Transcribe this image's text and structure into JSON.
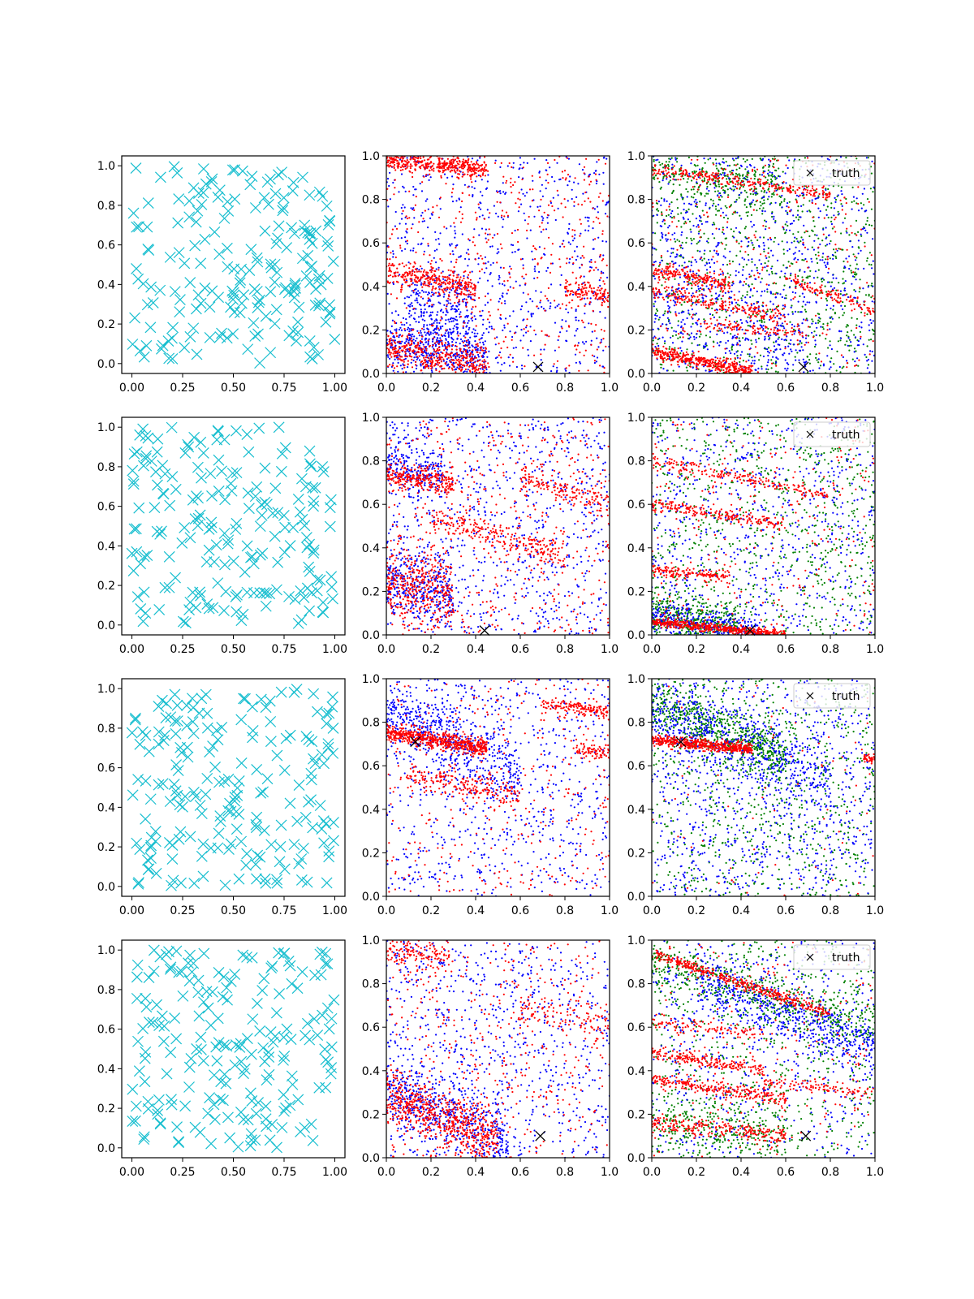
{
  "figure": {
    "rows": 4,
    "cols": 3
  },
  "colors": {
    "cyan": "#17becf",
    "blue": "#0000ff",
    "red": "#ff0000",
    "green": "#008000",
    "black": "#000000"
  },
  "legend_label": "truth",
  "chart_data": [
    {
      "type": "scatter",
      "row": 0,
      "col": 0,
      "marker": "x-large",
      "color": "#17becf",
      "xlim": [
        -0.05,
        1.05
      ],
      "ylim": [
        -0.05,
        1.05
      ],
      "xticks": [
        "0.00",
        "0.25",
        "0.50",
        "0.75",
        "1.00"
      ],
      "yticks": [
        "0.0",
        "0.2",
        "0.4",
        "0.6",
        "0.8",
        "1.0"
      ],
      "sample": "uniform",
      "n_points": 200,
      "seed": 11
    },
    {
      "type": "scatter",
      "row": 0,
      "col": 1,
      "xlim": [
        0,
        1
      ],
      "ylim": [
        0,
        1
      ],
      "xticks": [
        "0.0",
        "0.2",
        "0.4",
        "0.6",
        "0.8",
        "1.0"
      ],
      "yticks": [
        "0.0",
        "0.2",
        "0.4",
        "0.6",
        "0.8",
        "1.0"
      ],
      "truth": [
        0.68,
        0.03
      ],
      "legend": false,
      "series": [
        {
          "name": "",
          "color": "#0000ff",
          "uniform": 700,
          "bands": [
            {
              "x": [
                0.0,
                0.45
              ],
              "y0": 0.15,
              "slope": -0.2,
              "width": 0.06,
              "n": 400
            },
            {
              "x": [
                0.1,
                0.4
              ],
              "y0": 0.35,
              "slope": -0.2,
              "width": 0.1,
              "n": 300
            }
          ]
        },
        {
          "name": "",
          "color": "#ff0000",
          "uniform": 500,
          "bands": [
            {
              "x": [
                0.0,
                0.45
              ],
              "y0": 0.98,
              "slope": -0.1,
              "width": 0.02,
              "n": 400
            },
            {
              "x": [
                0.0,
                0.4
              ],
              "y0": 0.47,
              "slope": -0.2,
              "width": 0.03,
              "n": 300
            },
            {
              "x": [
                0.0,
                0.45
              ],
              "y0": 0.12,
              "slope": -0.2,
              "width": 0.04,
              "n": 400
            },
            {
              "x": [
                0.8,
                1.0
              ],
              "y0": 0.55,
              "slope": -0.2,
              "width": 0.02,
              "n": 120
            }
          ]
        }
      ]
    },
    {
      "type": "scatter",
      "row": 0,
      "col": 2,
      "xlim": [
        0,
        1
      ],
      "ylim": [
        0,
        1
      ],
      "xticks": [
        "0.0",
        "0.2",
        "0.4",
        "0.6",
        "0.8",
        "1.0"
      ],
      "yticks": [
        "0.0",
        "0.2",
        "0.4",
        "0.6",
        "0.8",
        "1.0"
      ],
      "truth": [
        0.68,
        0.03
      ],
      "legend": true,
      "series": [
        {
          "name": "",
          "color": "#008000",
          "uniform": 900,
          "bands": [
            {
              "x": [
                0.0,
                0.6
              ],
              "y0": 0.95,
              "slope": -0.2,
              "width": 0.05,
              "n": 250
            }
          ]
        },
        {
          "name": "",
          "color": "#0000ff",
          "uniform": 800,
          "bands": [
            {
              "x": [
                0.0,
                0.7
              ],
              "y0": 0.3,
              "slope": -0.2,
              "width": 0.15,
              "n": 300
            }
          ]
        },
        {
          "name": "",
          "color": "#ff0000",
          "uniform": 300,
          "bands": [
            {
              "x": [
                0.0,
                0.45
              ],
              "y0": 0.1,
              "slope": -0.2,
              "width": 0.015,
              "n": 400
            },
            {
              "x": [
                0.0,
                0.35
              ],
              "y0": 0.48,
              "slope": -0.2,
              "width": 0.02,
              "n": 200
            },
            {
              "x": [
                0.0,
                0.6
              ],
              "y0": 0.38,
              "slope": -0.2,
              "width": 0.02,
              "n": 200
            },
            {
              "x": [
                0.0,
                0.8
              ],
              "y0": 0.94,
              "slope": -0.15,
              "width": 0.015,
              "n": 250
            },
            {
              "x": [
                0.6,
                1.0
              ],
              "y0": 0.68,
              "slope": -0.4,
              "width": 0.015,
              "n": 120
            },
            {
              "x": [
                0.2,
                0.7
              ],
              "y0": 0.25,
              "slope": -0.1,
              "width": 0.015,
              "n": 100
            }
          ]
        }
      ]
    },
    {
      "type": "scatter",
      "row": 1,
      "col": 0,
      "marker": "x-large",
      "color": "#17becf",
      "xlim": [
        -0.05,
        1.05
      ],
      "ylim": [
        -0.05,
        1.05
      ],
      "xticks": [
        "0.00",
        "0.25",
        "0.50",
        "0.75",
        "1.00"
      ],
      "yticks": [
        "0.0",
        "0.2",
        "0.4",
        "0.6",
        "0.8",
        "1.0"
      ],
      "sample": "uniform",
      "n_points": 200,
      "seed": 22
    },
    {
      "type": "scatter",
      "row": 1,
      "col": 1,
      "xlim": [
        0,
        1
      ],
      "ylim": [
        0,
        1
      ],
      "xticks": [
        "0.0",
        "0.2",
        "0.4",
        "0.6",
        "0.8",
        "1.0"
      ],
      "yticks": [
        "0.0",
        "0.2",
        "0.4",
        "0.6",
        "0.8",
        "1.0"
      ],
      "truth": [
        0.44,
        0.02
      ],
      "legend": false,
      "series": [
        {
          "name": "",
          "color": "#0000ff",
          "uniform": 800,
          "bands": [
            {
              "x": [
                0.0,
                0.3
              ],
              "y0": 0.25,
              "slope": -0.2,
              "width": 0.08,
              "n": 350
            },
            {
              "x": [
                0.0,
                0.25
              ],
              "y0": 0.8,
              "slope": -0.2,
              "width": 0.06,
              "n": 200
            }
          ]
        },
        {
          "name": "",
          "color": "#ff0000",
          "uniform": 500,
          "bands": [
            {
              "x": [
                0.0,
                0.3
              ],
              "y0": 0.25,
              "slope": -0.2,
              "width": 0.08,
              "n": 350
            },
            {
              "x": [
                0.0,
                0.3
              ],
              "y0": 0.74,
              "slope": -0.15,
              "width": 0.03,
              "n": 250
            },
            {
              "x": [
                0.2,
                0.8
              ],
              "y0": 0.6,
              "slope": -0.3,
              "width": 0.03,
              "n": 250
            },
            {
              "x": [
                0.6,
                1.0
              ],
              "y0": 0.9,
              "slope": -0.3,
              "width": 0.03,
              "n": 150
            }
          ]
        }
      ]
    },
    {
      "type": "scatter",
      "row": 1,
      "col": 2,
      "xlim": [
        0,
        1
      ],
      "ylim": [
        0,
        1
      ],
      "xticks": [
        "0.0",
        "0.2",
        "0.4",
        "0.6",
        "0.8",
        "1.0"
      ],
      "yticks": [
        "0.0",
        "0.2",
        "0.4",
        "0.6",
        "0.8",
        "1.0"
      ],
      "truth": [
        0.44,
        0.02
      ],
      "legend": true,
      "series": [
        {
          "name": "",
          "color": "#008000",
          "uniform": 800,
          "bands": [
            {
              "x": [
                0.0,
                0.4
              ],
              "y0": 0.1,
              "slope": -0.2,
              "width": 0.05,
              "n": 400
            }
          ]
        },
        {
          "name": "",
          "color": "#0000ff",
          "uniform": 700,
          "bands": [
            {
              "x": [
                0.0,
                0.5
              ],
              "y0": 0.08,
              "slope": -0.15,
              "width": 0.04,
              "n": 300
            }
          ]
        },
        {
          "name": "",
          "color": "#ff0000",
          "uniform": 250,
          "bands": [
            {
              "x": [
                0.0,
                0.6
              ],
              "y0": 0.06,
              "slope": -0.1,
              "width": 0.01,
              "n": 500
            },
            {
              "x": [
                0.0,
                0.35
              ],
              "y0": 0.3,
              "slope": -0.1,
              "width": 0.015,
              "n": 150
            },
            {
              "x": [
                0.0,
                0.6
              ],
              "y0": 0.6,
              "slope": -0.15,
              "width": 0.015,
              "n": 200
            },
            {
              "x": [
                0.0,
                0.8
              ],
              "y0": 0.8,
              "slope": -0.2,
              "width": 0.015,
              "n": 200
            }
          ]
        }
      ]
    },
    {
      "type": "scatter",
      "row": 2,
      "col": 0,
      "marker": "x-large",
      "color": "#17becf",
      "xlim": [
        -0.05,
        1.05
      ],
      "ylim": [
        -0.05,
        1.05
      ],
      "xticks": [
        "0.00",
        "0.25",
        "0.50",
        "0.75",
        "1.00"
      ],
      "yticks": [
        "0.0",
        "0.2",
        "0.4",
        "0.6",
        "0.8",
        "1.0"
      ],
      "sample": "uniform",
      "n_points": 200,
      "seed": 33
    },
    {
      "type": "scatter",
      "row": 2,
      "col": 1,
      "xlim": [
        0,
        1
      ],
      "ylim": [
        0,
        1
      ],
      "xticks": [
        "0.0",
        "0.2",
        "0.4",
        "0.6",
        "0.8",
        "1.0"
      ],
      "yticks": [
        "0.0",
        "0.2",
        "0.4",
        "0.6",
        "0.8",
        "1.0"
      ],
      "truth": [
        0.13,
        0.71
      ],
      "legend": false,
      "series": [
        {
          "name": "",
          "color": "#0000ff",
          "uniform": 700,
          "bands": [
            {
              "x": [
                0.0,
                0.6
              ],
              "y0": 0.85,
              "slope": -0.5,
              "width": 0.08,
              "n": 500
            }
          ]
        },
        {
          "name": "",
          "color": "#ff0000",
          "uniform": 350,
          "bands": [
            {
              "x": [
                0.0,
                0.45
              ],
              "y0": 0.75,
              "slope": -0.15,
              "width": 0.02,
              "n": 600
            },
            {
              "x": [
                0.1,
                0.6
              ],
              "y0": 0.58,
              "slope": -0.2,
              "width": 0.03,
              "n": 200
            },
            {
              "x": [
                0.7,
                1.0
              ],
              "y0": 0.95,
              "slope": -0.1,
              "width": 0.015,
              "n": 150
            },
            {
              "x": [
                0.85,
                1.0
              ],
              "y0": 0.76,
              "slope": -0.1,
              "width": 0.02,
              "n": 80
            }
          ]
        }
      ]
    },
    {
      "type": "scatter",
      "row": 2,
      "col": 2,
      "xlim": [
        0,
        1
      ],
      "ylim": [
        0,
        1
      ],
      "xticks": [
        "0.0",
        "0.2",
        "0.4",
        "0.6",
        "0.8",
        "1.0"
      ],
      "yticks": [
        "0.0",
        "0.2",
        "0.4",
        "0.6",
        "0.8",
        "1.0"
      ],
      "truth": [
        0.13,
        0.71
      ],
      "legend": true,
      "series": [
        {
          "name": "",
          "color": "#008000",
          "uniform": 800,
          "bands": [
            {
              "x": [
                0.0,
                0.6
              ],
              "y0": 0.88,
              "slope": -0.4,
              "width": 0.06,
              "n": 600
            }
          ]
        },
        {
          "name": "",
          "color": "#0000ff",
          "uniform": 900,
          "bands": [
            {
              "x": [
                0.0,
                0.8
              ],
              "y0": 0.85,
              "slope": -0.4,
              "width": 0.08,
              "n": 500
            }
          ]
        },
        {
          "name": "",
          "color": "#ff0000",
          "uniform": 80,
          "bands": [
            {
              "x": [
                0.0,
                0.45
              ],
              "y0": 0.72,
              "slope": -0.1,
              "width": 0.012,
              "n": 500
            },
            {
              "x": [
                0.95,
                1.0
              ],
              "y0": 0.73,
              "slope": -0.1,
              "width": 0.01,
              "n": 40
            }
          ]
        }
      ]
    },
    {
      "type": "scatter",
      "row": 3,
      "col": 0,
      "marker": "x-large",
      "color": "#17becf",
      "xlim": [
        -0.05,
        1.05
      ],
      "ylim": [
        -0.05,
        1.05
      ],
      "xticks": [
        "0.00",
        "0.25",
        "0.50",
        "0.75",
        "1.00"
      ],
      "yticks": [
        "0.0",
        "0.2",
        "0.4",
        "0.6",
        "0.8",
        "1.0"
      ],
      "sample": "uniform",
      "n_points": 200,
      "seed": 44
    },
    {
      "type": "scatter",
      "row": 3,
      "col": 1,
      "xlim": [
        0,
        1
      ],
      "ylim": [
        0,
        1
      ],
      "xticks": [
        "0.0",
        "0.2",
        "0.4",
        "0.6",
        "0.8",
        "1.0"
      ],
      "yticks": [
        "0.0",
        "0.2",
        "0.4",
        "0.6",
        "0.8",
        "1.0"
      ],
      "truth": [
        0.69,
        0.1
      ],
      "legend": false,
      "series": [
        {
          "name": "",
          "color": "#0000ff",
          "uniform": 800,
          "bands": [
            {
              "x": [
                0.0,
                0.55
              ],
              "y0": 0.3,
              "slope": -0.4,
              "width": 0.08,
              "n": 500
            }
          ]
        },
        {
          "name": "",
          "color": "#ff0000",
          "uniform": 450,
          "bands": [
            {
              "x": [
                0.0,
                0.5
              ],
              "y0": 0.28,
              "slope": -0.4,
              "width": 0.06,
              "n": 600
            },
            {
              "x": [
                0.0,
                0.3
              ],
              "y0": 0.95,
              "slope": -0.1,
              "width": 0.03,
              "n": 120
            },
            {
              "x": [
                0.6,
                1.0
              ],
              "y0": 0.8,
              "slope": -0.2,
              "width": 0.04,
              "n": 100
            }
          ]
        }
      ]
    },
    {
      "type": "scatter",
      "row": 3,
      "col": 2,
      "xlim": [
        0,
        1
      ],
      "ylim": [
        0,
        1
      ],
      "xticks": [
        "0.0",
        "0.2",
        "0.4",
        "0.6",
        "0.8",
        "1.0"
      ],
      "yticks": [
        "0.0",
        "0.2",
        "0.4",
        "0.6",
        "0.8",
        "1.0"
      ],
      "truth": [
        0.69,
        0.1
      ],
      "legend": true,
      "series": [
        {
          "name": "",
          "color": "#008000",
          "uniform": 600,
          "bands": [
            {
              "x": [
                0.0,
                1.0
              ],
              "y0": 0.9,
              "slope": -0.3,
              "width": 0.06,
              "n": 500
            },
            {
              "x": [
                0.0,
                0.6
              ],
              "y0": 0.15,
              "slope": -0.1,
              "width": 0.08,
              "n": 300
            }
          ]
        },
        {
          "name": "",
          "color": "#0000ff",
          "uniform": 600,
          "bands": [
            {
              "x": [
                0.2,
                1.0
              ],
              "y0": 0.9,
              "slope": -0.4,
              "width": 0.07,
              "n": 500
            }
          ]
        },
        {
          "name": "",
          "color": "#ff0000",
          "uniform": 200,
          "bands": [
            {
              "x": [
                0.0,
                0.8
              ],
              "y0": 0.94,
              "slope": -0.35,
              "width": 0.012,
              "n": 400
            },
            {
              "x": [
                0.0,
                0.5
              ],
              "y0": 0.48,
              "slope": -0.15,
              "width": 0.015,
              "n": 200
            },
            {
              "x": [
                0.0,
                0.6
              ],
              "y0": 0.36,
              "slope": -0.15,
              "width": 0.015,
              "n": 250
            },
            {
              "x": [
                0.0,
                0.6
              ],
              "y0": 0.16,
              "slope": -0.1,
              "width": 0.02,
              "n": 250
            },
            {
              "x": [
                0.0,
                0.5
              ],
              "y0": 0.62,
              "slope": -0.1,
              "width": 0.015,
              "n": 100
            },
            {
              "x": [
                0.5,
                1.0
              ],
              "y0": 0.4,
              "slope": -0.1,
              "width": 0.015,
              "n": 100
            }
          ]
        }
      ]
    }
  ]
}
